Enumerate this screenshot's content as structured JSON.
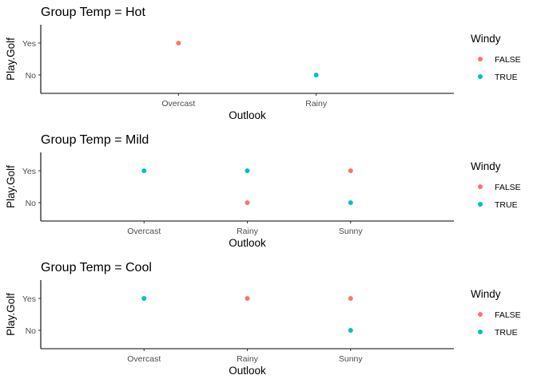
{
  "colors": {
    "FALSE": "#F8766D",
    "TRUE": "#00BFC4"
  },
  "chart_data": [
    {
      "type": "scatter",
      "title": "Group Temp  = Hot",
      "xlabel": "Outlook",
      "ylabel": "Play.Golf",
      "categories": [
        "Overcast",
        "Rainy"
      ],
      "y_categories": [
        "No",
        "Yes"
      ],
      "legend": {
        "title": "Windy",
        "entries": [
          "FALSE",
          "TRUE"
        ],
        "placement": "right"
      },
      "points": [
        {
          "x": "Overcast",
          "y": "Yes",
          "windy": "FALSE"
        },
        {
          "x": "Rainy",
          "y": "No",
          "windy": "TRUE"
        }
      ],
      "grid": false
    },
    {
      "type": "scatter",
      "title": "Group Temp  = Mild",
      "xlabel": "Outlook",
      "ylabel": "Play.Golf",
      "categories": [
        "Overcast",
        "Rainy",
        "Sunny"
      ],
      "y_categories": [
        "No",
        "Yes"
      ],
      "legend": {
        "title": "Windy",
        "entries": [
          "FALSE",
          "TRUE"
        ],
        "placement": "right"
      },
      "points": [
        {
          "x": "Overcast",
          "y": "Yes",
          "windy": "TRUE"
        },
        {
          "x": "Rainy",
          "y": "Yes",
          "windy": "TRUE"
        },
        {
          "x": "Rainy",
          "y": "No",
          "windy": "FALSE"
        },
        {
          "x": "Sunny",
          "y": "Yes",
          "windy": "FALSE"
        },
        {
          "x": "Sunny",
          "y": "No",
          "windy": "TRUE"
        }
      ],
      "grid": false
    },
    {
      "type": "scatter",
      "title": "Group Temp  = Cool",
      "xlabel": "Outlook",
      "ylabel": "Play.Golf",
      "categories": [
        "Overcast",
        "Rainy",
        "Sunny"
      ],
      "y_categories": [
        "No",
        "Yes"
      ],
      "legend": {
        "title": "Windy",
        "entries": [
          "FALSE",
          "TRUE"
        ],
        "placement": "right"
      },
      "points": [
        {
          "x": "Overcast",
          "y": "Yes",
          "windy": "TRUE"
        },
        {
          "x": "Rainy",
          "y": "Yes",
          "windy": "FALSE"
        },
        {
          "x": "Sunny",
          "y": "Yes",
          "windy": "FALSE"
        },
        {
          "x": "Sunny",
          "y": "No",
          "windy": "TRUE"
        }
      ],
      "grid": false
    }
  ]
}
